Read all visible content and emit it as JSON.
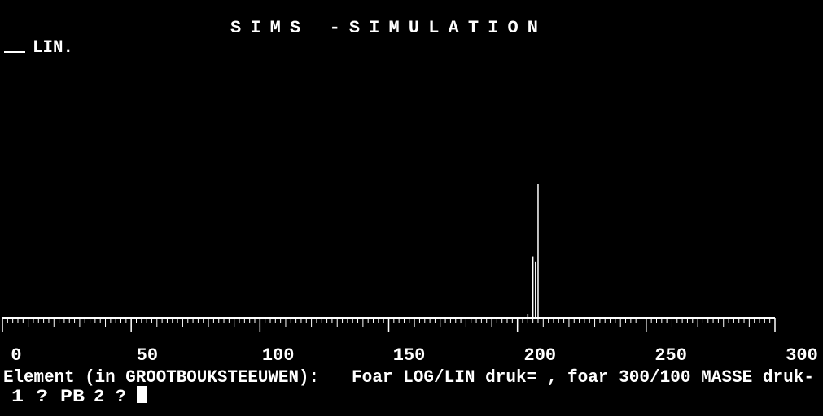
{
  "chart_data": {
    "type": "bar",
    "title": "SIMS -SIMULATION",
    "mode": "LIN.",
    "x": [
      204,
      206,
      207,
      208
    ],
    "values": [
      1.4,
      24.1,
      22.1,
      52.4
    ],
    "color": "#ffffff",
    "xlim": [
      0,
      300
    ],
    "xticks": [
      0,
      50,
      100,
      150,
      200,
      250,
      300
    ]
  },
  "prompt": {
    "element_label": "Element (in GROOTBOUKSTEEUWEN):",
    "hint": "Foar LOG/LIN druk= , foar 300/100 MASSE druk-",
    "input_1": "1 ? PB",
    "input_2": "2 ?"
  }
}
